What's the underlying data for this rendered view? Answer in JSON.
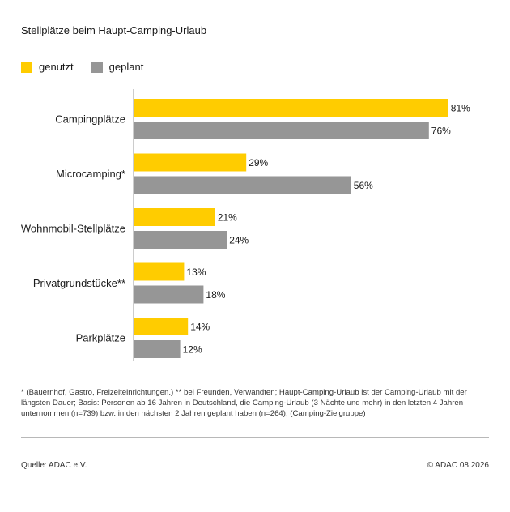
{
  "title": "Stellplätze beim Haupt-Camping-Urlaub",
  "legend": [
    {
      "label": "genutzt",
      "color": "#ffcc00"
    },
    {
      "label": "geplant",
      "color": "#969696"
    }
  ],
  "chart_data": {
    "type": "bar",
    "orientation": "horizontal",
    "title": "Stellplätze beim Haupt-Camping-Urlaub",
    "categories": [
      "Campingplätze",
      "Microcamping*",
      "Wohnmobil-Stellplätze",
      "Privatgrundstücke**",
      "Parkplätze"
    ],
    "series": [
      {
        "name": "genutzt",
        "values": [
          81,
          29,
          21,
          13,
          14
        ],
        "color": "#ffcc00"
      },
      {
        "name": "geplant",
        "values": [
          76,
          56,
          24,
          18,
          12
        ],
        "color": "#969696"
      }
    ],
    "value_suffix": "%",
    "xlim": [
      0,
      100
    ],
    "grid": false,
    "legend_position": "top-left"
  },
  "footnote": "* (Bauernhof, Gastro, Freizeiteinrichtungen.)  ** bei Freunden, Verwandten; Haupt-Camping-Urlaub ist der Camping-Urlaub mit der längsten Dauer; Basis: Personen ab 16 Jahren in Deutschland, die Camping-Urlaub (3 Nächte und mehr) in den letzten 4 Jahren unternommen (n=739) bzw. in den nächsten 2 Jahren geplant haben (n=264); (Camping-Zielgruppe)",
  "source": "Quelle: ADAC e.V.",
  "copyright": "© ADAC 08.2026"
}
